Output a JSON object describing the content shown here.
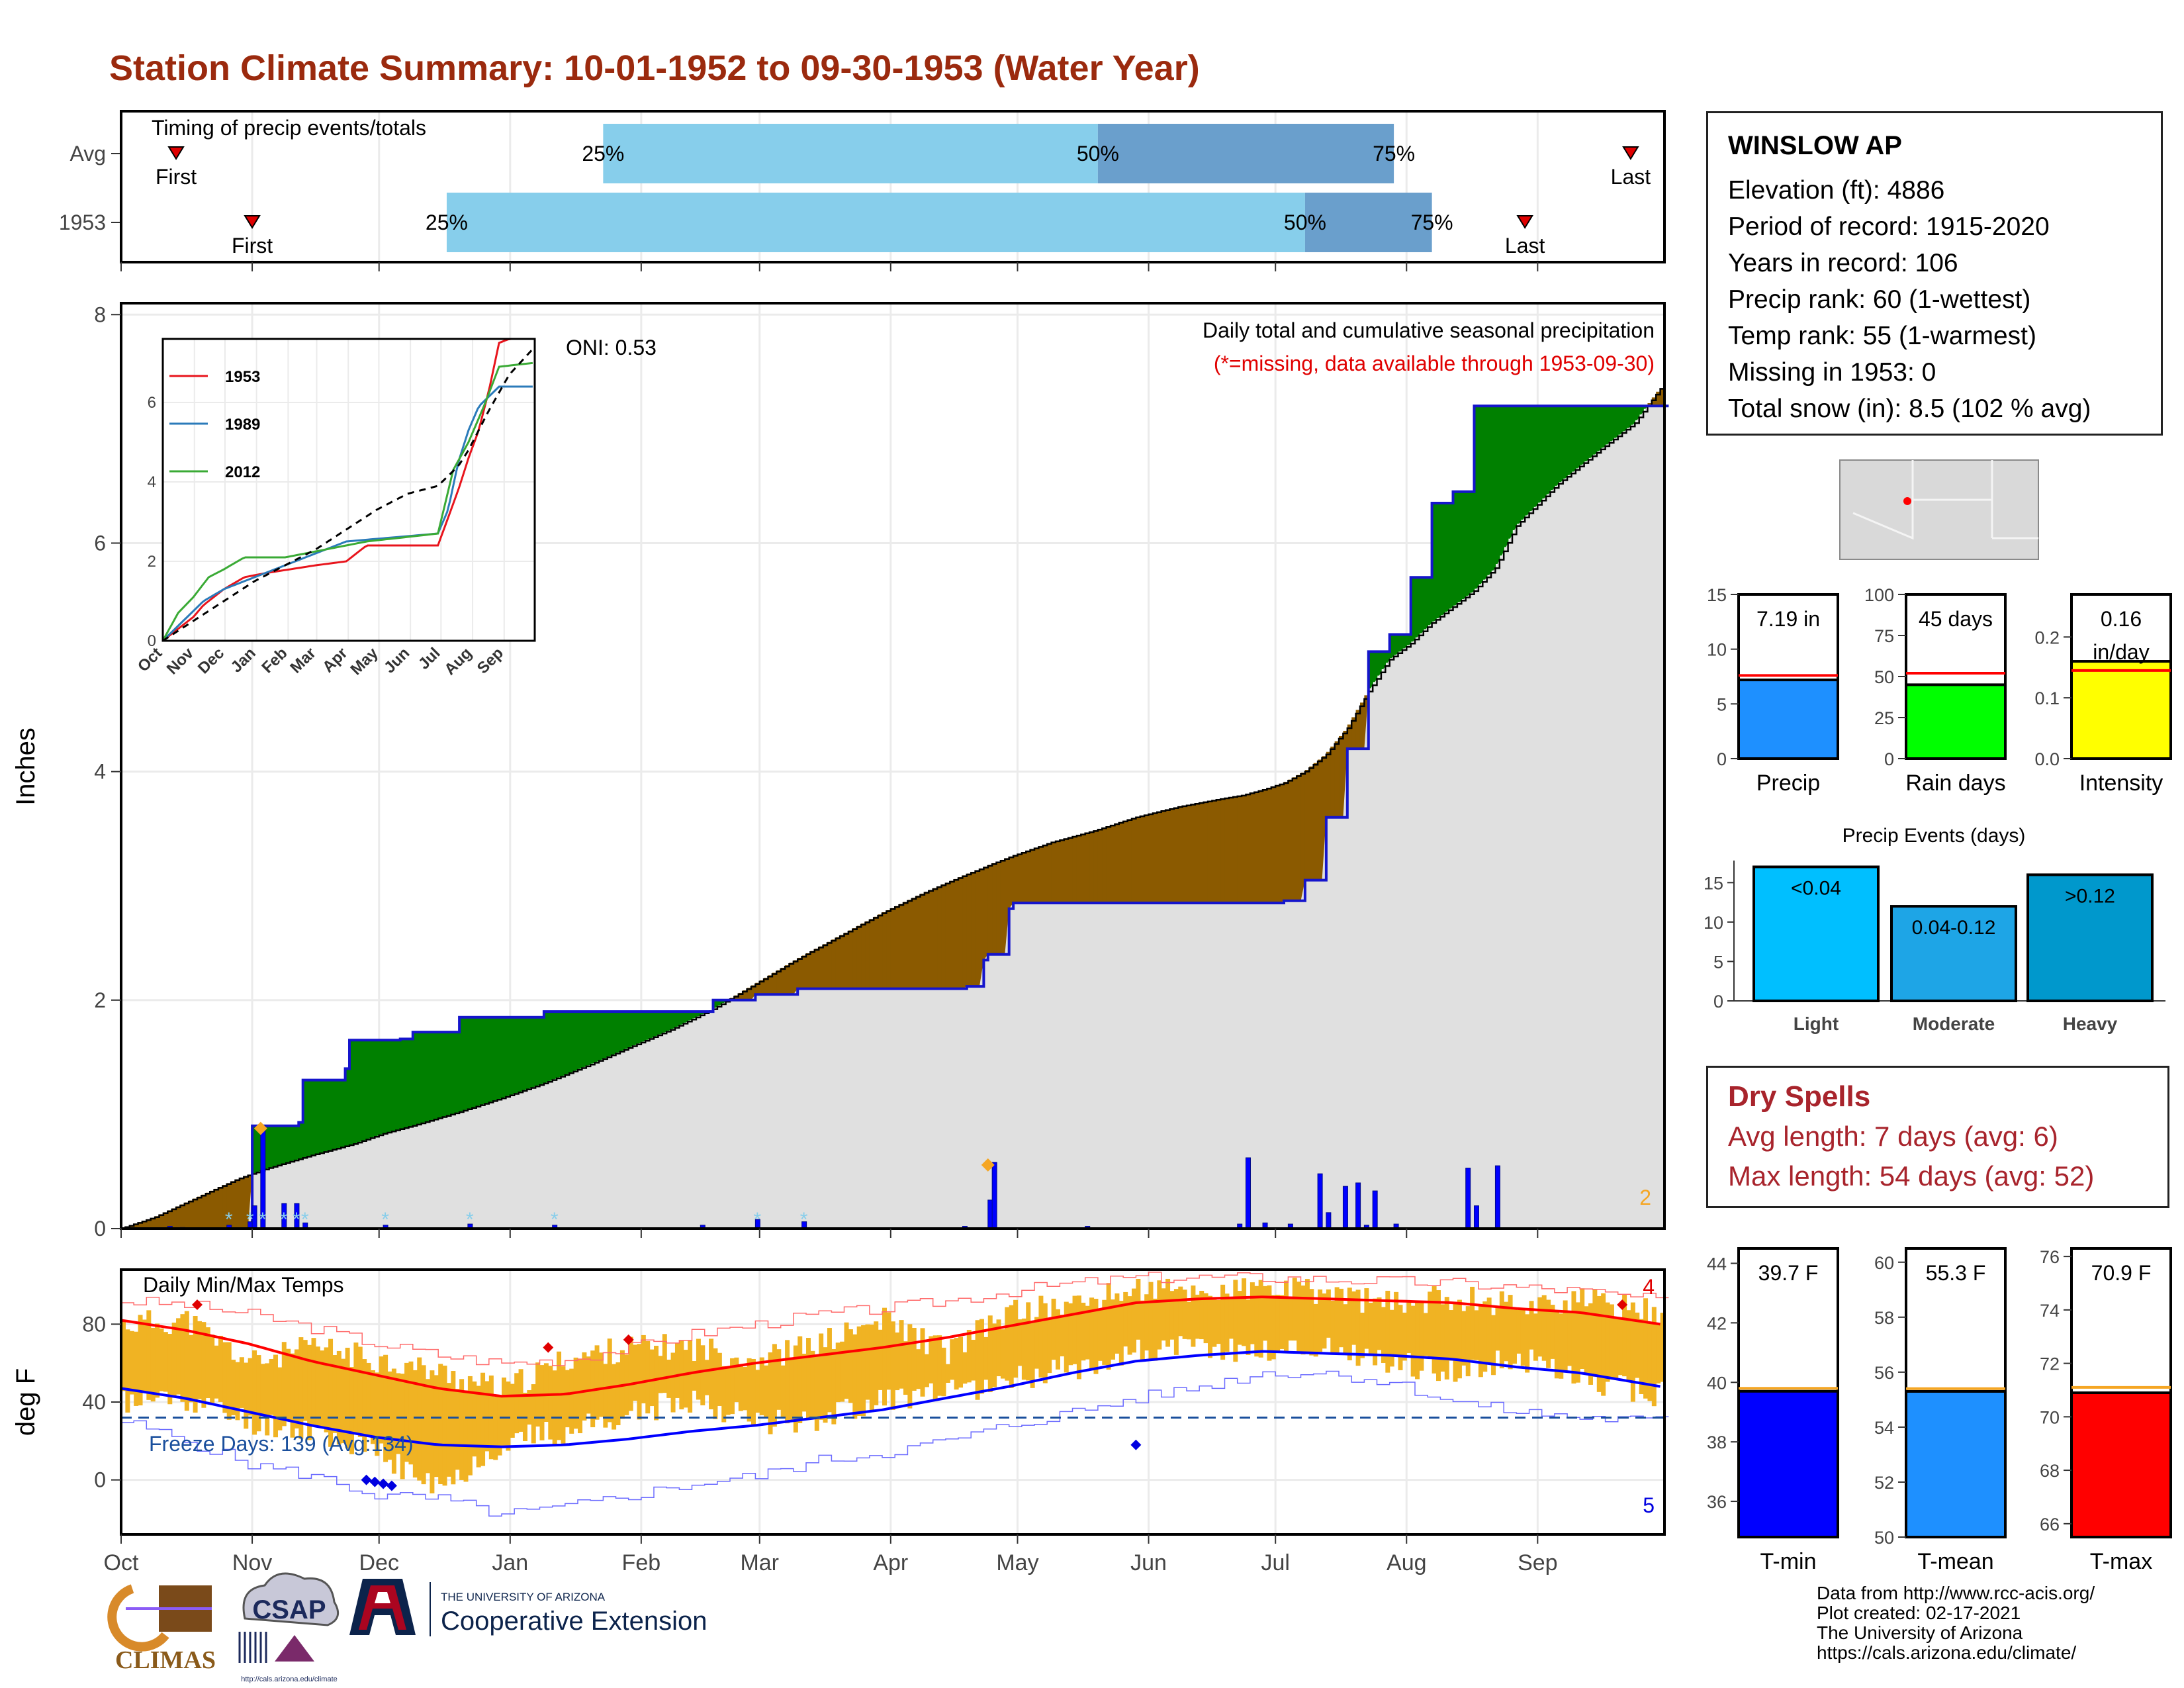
{
  "title": "Station Climate Summary: 10-01-1952 to 09-30-1953 (Water Year)",
  "colors": {
    "title": "#9b2a0e",
    "brown": "#8b5a00",
    "green": "#008000",
    "avg_fill": "#e0e0e0",
    "avg_line": "#1515cc",
    "bar_light": "#87ceeb",
    "bar_dark": "#6a9fcc"
  },
  "months": [
    "Oct",
    "Nov",
    "Dec",
    "Jan",
    "Feb",
    "Mar",
    "Apr",
    "May",
    "Jun",
    "Jul",
    "Aug",
    "Sep"
  ],
  "timing": {
    "label": "Timing of precip events/totals",
    "rows": [
      {
        "name": "Avg",
        "first_label": "First",
        "last_label": "Last",
        "first": 13,
        "last": 357,
        "p25": 114,
        "p50": 231,
        "p75": 301
      },
      {
        "name": "1953",
        "first_label": "First",
        "last_label": "Last",
        "first": 31,
        "last": 332,
        "p25": 77,
        "p50": 280,
        "p75": 310
      }
    ],
    "pct_labels": [
      "25%",
      "50%",
      "75%"
    ]
  },
  "precip_panel": {
    "ylabel": "Inches",
    "yticks": [
      "0",
      "2",
      "4",
      "6",
      "8"
    ],
    "ylim": [
      0,
      8.1
    ],
    "legend1": "Daily total and cumulative seasonal precipitation",
    "legend2": "(*=missing, data available through 1953-09-30)",
    "oni": "ONI: 0.53",
    "count": "2"
  },
  "chart_data": [
    {
      "type": "area",
      "title": "Daily total and cumulative seasonal precipitation",
      "ylabel": "Inches",
      "x_unit": "day of water year",
      "ylim": [
        0,
        8.1
      ],
      "series": [
        {
          "name": "avg cumulative",
          "x": [
            0,
            8,
            15,
            22,
            28,
            35,
            45,
            55,
            62,
            70,
            80,
            90,
            100,
            110,
            120,
            130,
            140,
            150,
            160,
            170,
            180,
            190,
            200,
            210,
            220,
            230,
            240,
            250,
            260,
            265,
            270,
            275,
            280,
            285,
            290,
            295,
            300,
            305,
            310,
            315,
            320,
            325,
            330,
            340,
            350,
            358,
            364
          ],
          "y": [
            0,
            0.1,
            0.22,
            0.34,
            0.44,
            0.53,
            0.64,
            0.74,
            0.83,
            0.91,
            1.02,
            1.14,
            1.27,
            1.42,
            1.58,
            1.74,
            1.92,
            2.14,
            2.36,
            2.56,
            2.76,
            2.94,
            3.1,
            3.25,
            3.38,
            3.48,
            3.6,
            3.69,
            3.76,
            3.79,
            3.84,
            3.9,
            4.0,
            4.15,
            4.38,
            4.7,
            4.98,
            5.12,
            5.3,
            5.44,
            5.58,
            5.78,
            6.15,
            6.52,
            6.82,
            7.05,
            7.35
          ]
        },
        {
          "name": "1953 cumulative",
          "x": [
            0,
            30,
            31,
            42,
            43,
            53,
            54,
            66,
            69,
            80,
            100,
            140,
            150,
            160,
            180,
            190,
            200,
            204,
            205,
            210,
            211,
            240,
            250,
            260,
            275,
            280,
            285,
            290,
            295,
            300,
            305,
            310,
            315,
            320,
            325,
            330,
            340,
            365
          ],
          "y": [
            0,
            0,
            0.9,
            0.93,
            1.3,
            1.4,
            1.65,
            1.66,
            1.72,
            1.85,
            1.9,
            2.0,
            2.05,
            2.1,
            2.1,
            2.1,
            2.12,
            2.35,
            2.4,
            2.8,
            2.85,
            2.85,
            2.85,
            2.85,
            2.87,
            3.05,
            3.6,
            4.2,
            5.05,
            5.2,
            5.7,
            6.35,
            6.45,
            7.2,
            7.2,
            7.2,
            7.2,
            7.2
          ]
        }
      ]
    },
    {
      "type": "bar",
      "title": "Daily precipitation (inches)",
      "x": [
        11,
        14,
        25,
        30,
        31,
        33,
        38,
        41,
        43,
        62,
        82,
        102,
        137,
        150,
        161,
        199,
        205,
        206,
        228,
        264,
        266,
        270,
        276,
        283,
        285,
        289,
        292,
        294,
        296,
        301,
        318,
        320,
        325
      ],
      "values": [
        0.02,
        0.01,
        0.03,
        0.06,
        0.2,
        0.9,
        0.22,
        0.22,
        0.05,
        0.03,
        0.04,
        0.03,
        0.03,
        0.08,
        0.06,
        0.02,
        0.25,
        0.58,
        0.02,
        0.04,
        0.62,
        0.05,
        0.04,
        0.48,
        0.14,
        0.37,
        0.4,
        0.03,
        0.33,
        0.04,
        0.53,
        0.2,
        0.55
      ]
    },
    {
      "type": "line",
      "title": "Daily Min/Max Temps",
      "ylabel": "deg F",
      "ylim": [
        -28,
        108
      ],
      "x": [
        0,
        15,
        30,
        45,
        60,
        75,
        90,
        105,
        120,
        135,
        150,
        165,
        180,
        195,
        210,
        225,
        240,
        255,
        270,
        285,
        300,
        315,
        330,
        345,
        364
      ],
      "series": [
        {
          "name": "avg max",
          "values": [
            82,
            77,
            70,
            61,
            54,
            47,
            43,
            44,
            49,
            55,
            60,
            64,
            68,
            73,
            79,
            85,
            91,
            93,
            94,
            93,
            92,
            91,
            88,
            86,
            80
          ]
        },
        {
          "name": "avg min",
          "values": [
            47,
            42,
            35,
            28,
            22,
            18,
            17,
            18,
            21,
            25,
            28,
            32,
            36,
            42,
            48,
            55,
            61,
            64,
            66,
            65,
            64,
            62,
            58,
            55,
            48
          ]
        },
        {
          "name": "record max",
          "values": [
            92,
            90,
            85,
            78,
            70,
            64,
            60,
            62,
            68,
            75,
            80,
            85,
            88,
            92,
            97,
            101,
            104,
            104,
            104,
            103,
            102,
            101,
            99,
            97,
            92
          ]
        },
        {
          "name": "record min",
          "values": [
            30,
            20,
            8,
            2,
            -8,
            -10,
            -18,
            -14,
            -8,
            -2,
            2,
            10,
            14,
            20,
            28,
            35,
            42,
            48,
            55,
            55,
            50,
            40,
            35,
            32,
            30
          ]
        },
        {
          "name": "1953 max",
          "values": [
            80,
            82,
            60,
            68,
            62,
            55,
            46,
            62,
            68,
            68,
            62,
            70,
            82,
            66,
            86,
            90,
            98,
            96,
            98,
            96,
            90,
            94,
            90,
            92,
            86
          ]
        },
        {
          "name": "1953 min",
          "values": [
            40,
            42,
            30,
            26,
            14,
            -5,
            20,
            25,
            34,
            42,
            30,
            32,
            42,
            44,
            52,
            58,
            66,
            68,
            66,
            68,
            60,
            56,
            62,
            52,
            44
          ]
        }
      ],
      "freeze_line": 32
    }
  ],
  "temp_panel": {
    "label": "Daily Min/Max Temps",
    "ylabel": "deg F",
    "yticks": [
      "0",
      "40",
      "80"
    ],
    "freeze": "Freeze Days: 139 (Avg:134)",
    "count_top": "4",
    "count_bottom": "5"
  },
  "inset": {
    "legend": [
      "1953",
      "1989",
      "2012"
    ],
    "legend_colors": [
      "#e8141c",
      "#2b7bba",
      "#3aaa35"
    ],
    "yticks": [
      "0",
      "2",
      "4",
      "6"
    ],
    "months": [
      "Oct",
      "Nov",
      "Dec",
      "Jan",
      "Feb",
      "Mar",
      "Apr",
      "May",
      "Jun",
      "Jul",
      "Aug",
      "Sep"
    ]
  },
  "station": {
    "name": "WINSLOW AP",
    "lines": [
      "Elevation (ft): 4886",
      "Period of record: 1915-2020",
      "Years in record: 106",
      "Precip rank: 60 (1-wettest)",
      "Temp rank: 55 (1-warmest)",
      "Missing in 1953: 0",
      "Total snow (in): 8.5 (102 % avg)"
    ]
  },
  "mini_bars": [
    {
      "label": "Precip",
      "value_label": "7.19 in",
      "value": 7.19,
      "avg": 7.6,
      "ymax": 15,
      "yticks": [
        "0",
        "5",
        "10",
        "15"
      ],
      "color": "#1e90ff"
    },
    {
      "label": "Rain days",
      "value_label": "45 days",
      "value": 45,
      "avg": 52,
      "ymax": 100,
      "yticks": [
        "0",
        "25",
        "50",
        "75",
        "100"
      ],
      "color": "#00ff00"
    },
    {
      "label": "Intensity",
      "value_label": "0.16 in/day",
      "value_line1": "0.16",
      "value_line2": "in/day",
      "value": 0.16,
      "avg": 0.145,
      "ymax": 0.27,
      "yticks": [
        "0.0",
        "0.1",
        "0.2"
      ],
      "color": "#ffff00"
    }
  ],
  "events": {
    "title": "Precip Events (days)",
    "yticks": [
      "0",
      "5",
      "10",
      "15"
    ],
    "bars": [
      {
        "label": "Light",
        "value_label": "<0.04",
        "value": 17,
        "color": "#00bfff"
      },
      {
        "label": "Moderate",
        "value_label": "0.04-0.12",
        "value": 12,
        "color": "#1ea5e6"
      },
      {
        "label": "Heavy",
        "value_label": ">0.12",
        "value": 16,
        "color": "#0098cc"
      }
    ]
  },
  "dry_spells": {
    "title": "Dry Spells",
    "avg_length": "Avg length: 7 days (avg: 6)",
    "max_length": "Max length: 54 days (avg: 52)"
  },
  "temp_bars": [
    {
      "label": "T-min",
      "value_label": "39.7 F",
      "value": 39.7,
      "avg": 39.8,
      "ymin": 34.8,
      "ymax": 44.5,
      "yticks": [
        "36",
        "38",
        "40",
        "42",
        "44"
      ],
      "color": "#0000ff"
    },
    {
      "label": "T-mean",
      "value_label": "55.3 F",
      "value": 55.3,
      "avg": 55.4,
      "ymin": 50,
      "ymax": 60.5,
      "yticks": [
        "50",
        "52",
        "54",
        "56",
        "58",
        "60"
      ],
      "color": "#1e90ff"
    },
    {
      "label": "T-max",
      "value_label": "70.9 F",
      "value": 70.9,
      "avg": 71.1,
      "ymin": 65.5,
      "ymax": 76.3,
      "yticks": [
        "66",
        "68",
        "70",
        "72",
        "74",
        "76"
      ],
      "color": "#ff0000"
    }
  ],
  "logos": {
    "climas": "CLIMAS",
    "csap": "CSAP",
    "csap_url": "http://cals.arizona.edu/climate",
    "ua_small": "THE UNIVERSITY OF ARIZONA",
    "ua_big": "Cooperative Extension"
  },
  "credits": [
    "Data from http://www.rcc-acis.org/",
    "Plot created: 02-17-2021",
    "The University of Arizona",
    "https://cals.arizona.edu/climate/"
  ]
}
